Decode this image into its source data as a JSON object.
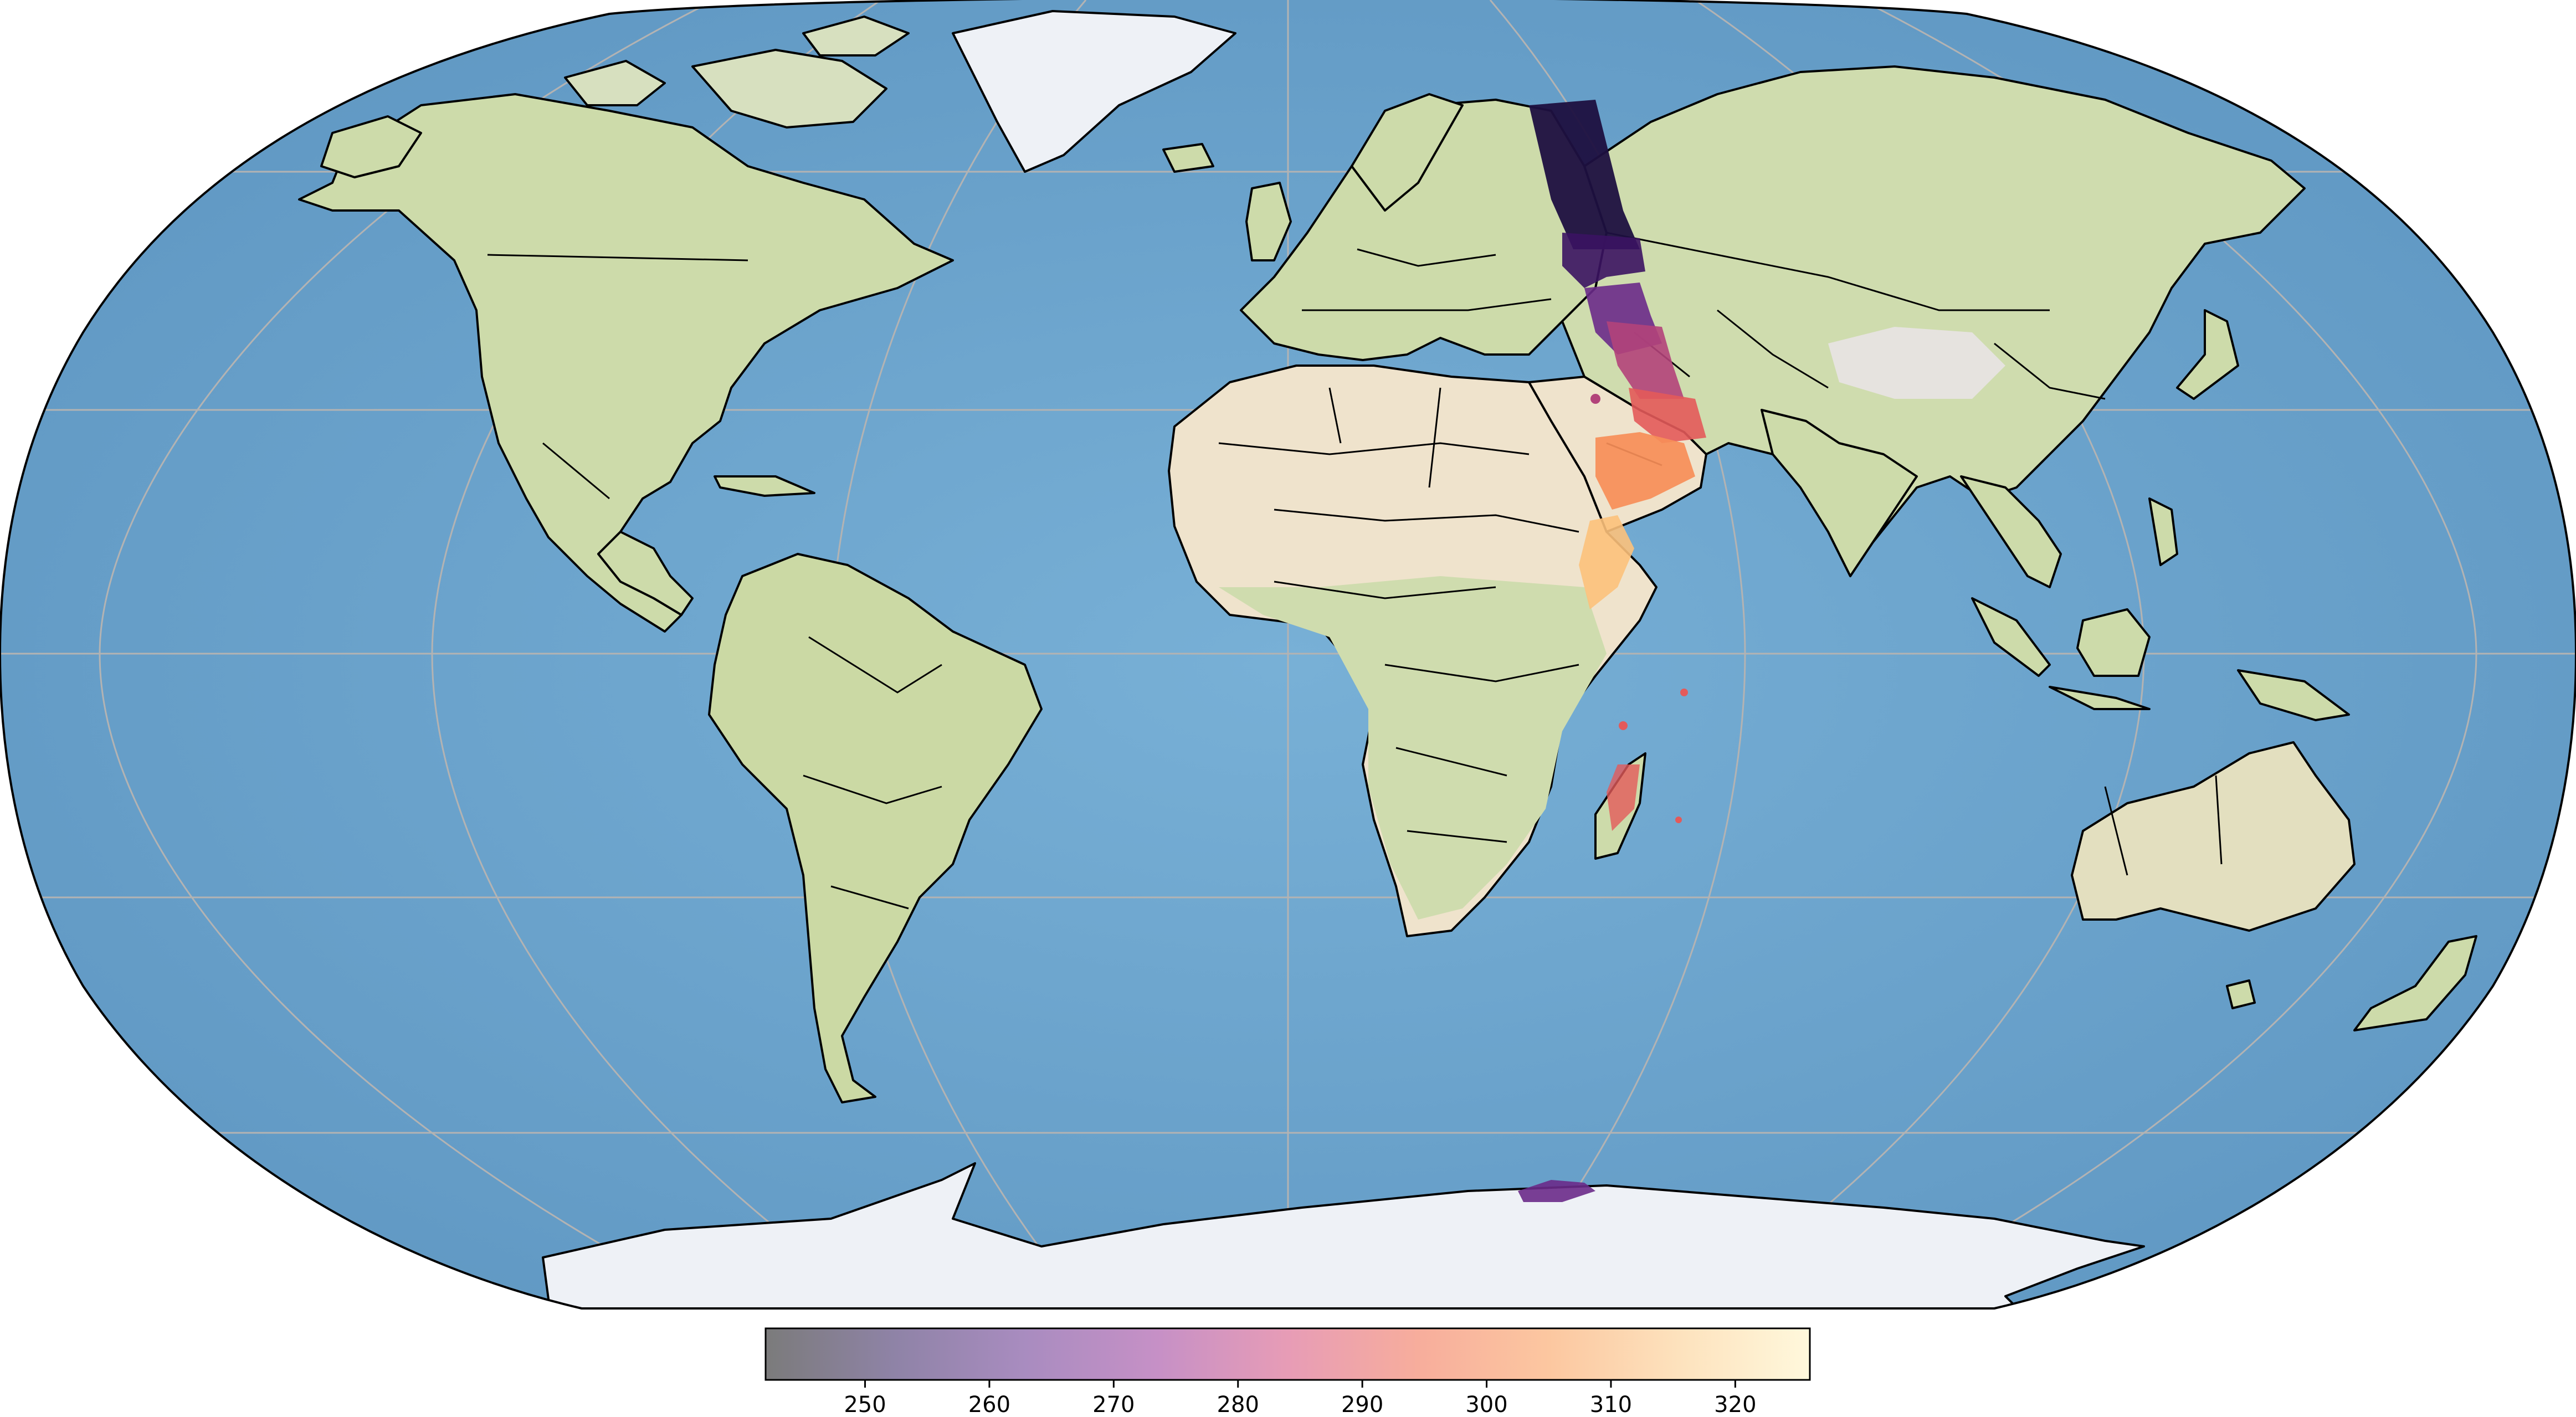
{
  "map": {
    "projection": "Robinson",
    "basemap": "shaded-relief",
    "coastlines": true,
    "country_borders": true,
    "graticule": true,
    "colors": {
      "ocean": "#6fa8cf",
      "ocean_deep": "#5f9bc6",
      "land": "#cfdcae",
      "desert": "#efe3cc",
      "ice": "#eef1f6",
      "graticule": "#b3b3b3",
      "border": "#000000"
    },
    "swath": {
      "description_colors": [
        "#1d1040",
        "#3b1362",
        "#6a2a8a",
        "#b2437a",
        "#e35a5a",
        "#f78e58",
        "#fcc17b"
      ]
    }
  },
  "colorbar": {
    "colormap": "magma-like",
    "vmin": 242,
    "vmax": 326,
    "ticks": [
      {
        "value": 250,
        "label": "250"
      },
      {
        "value": 260,
        "label": "260"
      },
      {
        "value": 270,
        "label": "270"
      },
      {
        "value": 280,
        "label": "280"
      },
      {
        "value": 290,
        "label": "290"
      },
      {
        "value": 300,
        "label": "300"
      },
      {
        "value": 310,
        "label": "310"
      },
      {
        "value": 320,
        "label": "320"
      }
    ],
    "stops": [
      "#7b7b7b",
      "#8f83a7",
      "#a98cc0",
      "#c690c6",
      "#e79cb6",
      "#f7ad9c",
      "#fcc7a0",
      "#fde2bd",
      "#fff8dc"
    ]
  }
}
